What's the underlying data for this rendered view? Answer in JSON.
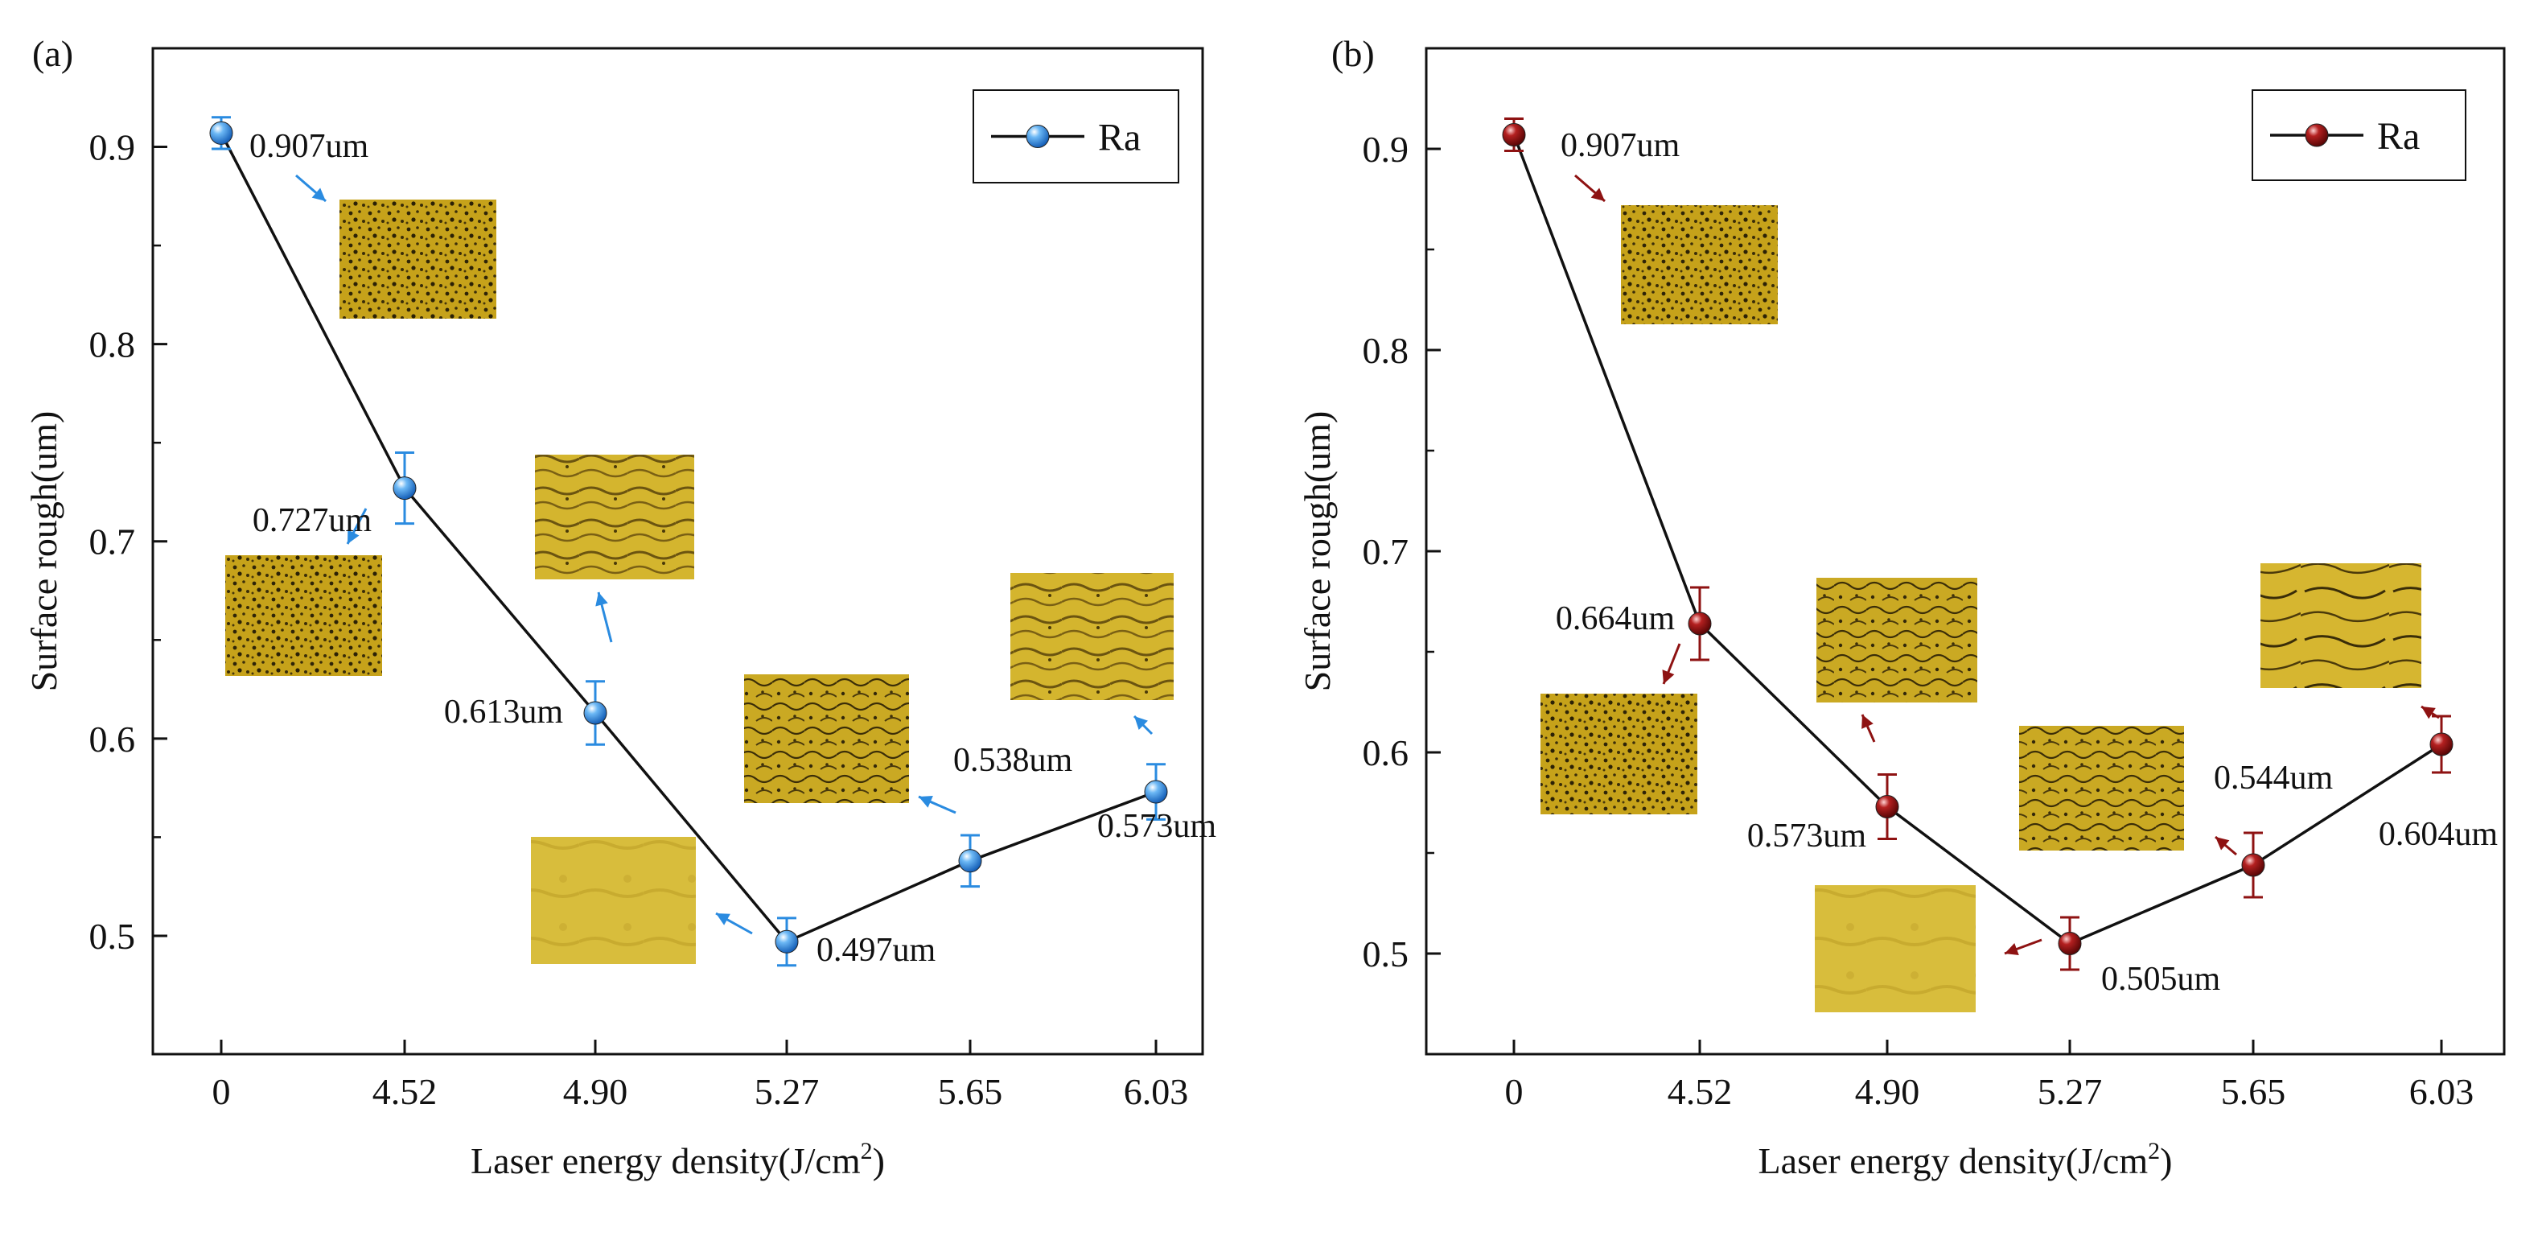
{
  "chart_data": [
    {
      "panel_label": "(a)",
      "type": "line",
      "categories": [
        "0",
        "4.52",
        "4.90",
        "5.27",
        "5.65",
        "6.03"
      ],
      "series": [
        {
          "name": "Ra",
          "values": [
            0.907,
            0.727,
            0.613,
            0.497,
            0.538,
            0.573
          ],
          "errors": [
            0.008,
            0.018,
            0.016,
            0.012,
            0.013,
            0.014
          ],
          "color": "#2a8be0"
        }
      ],
      "data_labels": [
        "0.907um",
        "0.727um",
        "0.613um",
        "0.497um",
        "0.538um",
        "0.573um"
      ],
      "xlabel_main": "Laser energy density(J/cm",
      "xlabel_sup": "2",
      "xlabel_tail": ")",
      "ylabel": "Surface rough(um)",
      "y_ticks": [
        "0.5",
        "0.6",
        "0.7",
        "0.8",
        "0.9"
      ],
      "ylim": [
        0.44,
        0.95
      ],
      "legend": "Ra",
      "legend_position": "top-right"
    },
    {
      "panel_label": "(b)",
      "type": "line",
      "categories": [
        "0",
        "4.52",
        "4.90",
        "5.27",
        "5.65",
        "6.03"
      ],
      "series": [
        {
          "name": "Ra",
          "values": [
            0.907,
            0.664,
            0.573,
            0.505,
            0.544,
            0.604
          ],
          "errors": [
            0.008,
            0.018,
            0.016,
            0.013,
            0.016,
            0.014
          ],
          "color": "#8e1212"
        }
      ],
      "data_labels": [
        "0.907um",
        "0.664um",
        "0.573um",
        "0.505um",
        "0.544um",
        "0.604um"
      ],
      "xlabel_main": "Laser energy density(J/cm",
      "xlabel_sup": "2",
      "xlabel_tail": ")",
      "ylabel": "Surface rough(um)",
      "y_ticks": [
        "0.5",
        "0.6",
        "0.7",
        "0.8",
        "0.9"
      ],
      "ylim": [
        0.45,
        0.95
      ],
      "legend": "Ra",
      "legend_position": "top-right"
    }
  ]
}
